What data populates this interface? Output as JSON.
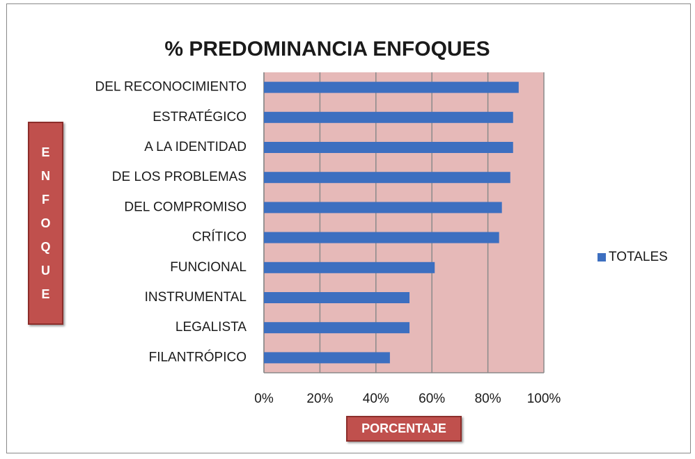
{
  "chart_data": {
    "type": "bar",
    "orientation": "horizontal",
    "title": "% PREDOMINANCIA ENFOQUES",
    "x_label": "PORCENTAJE",
    "y_label": "ENFOQUE",
    "categories": [
      "DEL RECONOCIMIENTO",
      "ESTRATÉGICO",
      "A LA IDENTIDAD",
      "DE LOS PROBLEMAS",
      "DEL COMPROMISO",
      "CRÍTICO",
      "FUNCIONAL",
      "INSTRUMENTAL",
      "LEGALISTA",
      "FILANTRÓPICO"
    ],
    "series": [
      {
        "name": "TOTALES",
        "color": "#3d6fc0",
        "values": [
          91,
          89,
          89,
          88,
          85,
          84,
          61,
          52,
          52,
          45
        ]
      }
    ],
    "xlim": [
      0,
      100
    ],
    "xticks": [
      {
        "value": 0,
        "label": "0%"
      },
      {
        "value": 20,
        "label": "20%"
      },
      {
        "value": 40,
        "label": "40%"
      },
      {
        "value": 60,
        "label": "60%"
      },
      {
        "value": 80,
        "label": "80%"
      },
      {
        "value": 100,
        "label": "100%"
      }
    ],
    "grid": true,
    "legend": "right",
    "plot_background": "#e6b9b8"
  }
}
